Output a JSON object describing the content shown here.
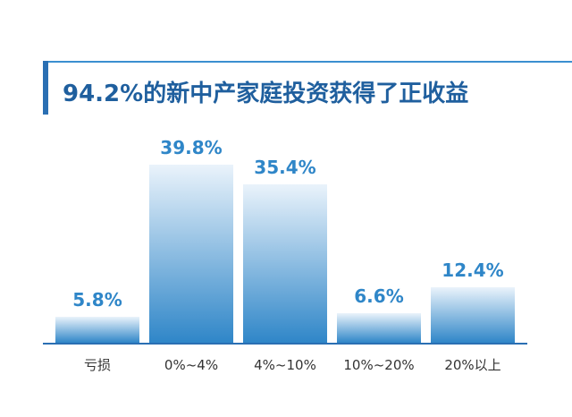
{
  "title": "94.2%的新中产家庭投资获得了正收益",
  "colors": {
    "accent": "#2a6fb3",
    "title_text": "#1f5f9e",
    "bar_top": "#eaf3fb",
    "bar_bottom": "#2f86c8",
    "value_label": "#2f86c8",
    "axis": "#2a6fb3"
  },
  "chart_data": {
    "type": "bar",
    "title": "94.2%的新中产家庭投资获得了正收益",
    "categories": [
      "亏损",
      "0%~4%",
      "4%~10%",
      "10%~20%",
      "20%以上"
    ],
    "values": [
      5.8,
      39.8,
      35.4,
      6.6,
      12.4
    ],
    "data_labels": [
      "5.8%",
      "39.8%",
      "35.4%",
      "6.6%",
      "12.4%"
    ],
    "xlabel": "",
    "ylabel": "",
    "ylim": [
      0,
      40
    ],
    "grid": false,
    "legend": "none"
  }
}
